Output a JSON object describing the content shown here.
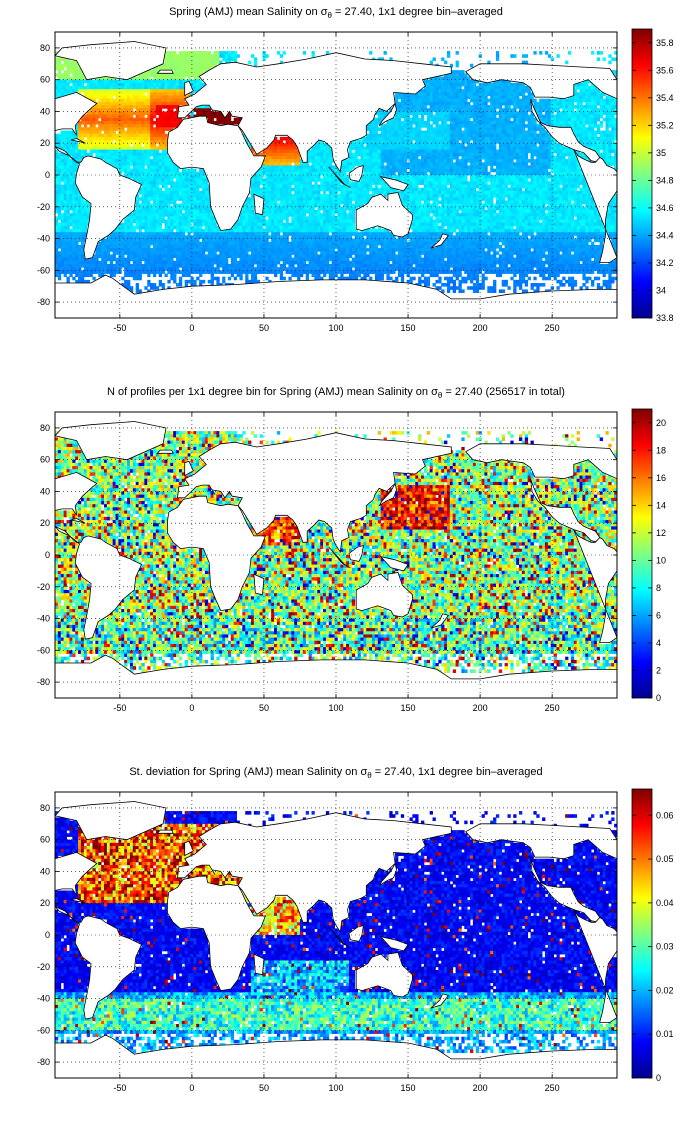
{
  "colors": {
    "land": "#ffffff",
    "coast": "#000000",
    "jet": [
      "#00008f",
      "#0000ff",
      "#0080ff",
      "#00ffff",
      "#80ff80",
      "#ffff00",
      "#ff8000",
      "#ff0000",
      "#800000"
    ]
  },
  "axes": {
    "x_ticks": [
      "-50",
      "0",
      "50",
      "100",
      "150",
      "200",
      "250"
    ],
    "y_ticks": [
      "80",
      "60",
      "40",
      "20",
      "0",
      "-20",
      "-40",
      "-60",
      "-80"
    ]
  },
  "panels": [
    {
      "title_parts": [
        "Spring (AMJ) mean Salinity on σ",
        "θ",
        " = 27.40, 1x1 degree bin–averaged"
      ],
      "colorbar_ticks": [
        "35.8",
        "35.6",
        "35.4",
        "35.2",
        "35",
        "34.8",
        "34.6",
        "34.4",
        "34.2",
        "34",
        "33.8"
      ],
      "clim": [
        33.8,
        35.9
      ],
      "variable": "salinity"
    },
    {
      "title_parts": [
        "N of profiles per 1x1 degree bin for Spring (AMJ) mean Salinity on σ",
        "θ",
        " = 27.40 (256517 in total)"
      ],
      "colorbar_ticks": [
        "20",
        "18",
        "16",
        "14",
        "12",
        "10",
        "8",
        "6",
        "4",
        "2",
        "0"
      ],
      "clim": [
        0,
        21
      ],
      "variable": "count"
    },
    {
      "title_parts": [
        "St. deviation for Spring (AMJ) mean Salinity on σ",
        "θ",
        " = 27.40, 1x1 degree bin–averaged"
      ],
      "colorbar_ticks": [
        "0.06",
        "0.05",
        "0.04",
        "0.03",
        "0.02",
        "0.01",
        "0"
      ],
      "clim": [
        0,
        0.066
      ],
      "variable": "stdev"
    }
  ]
}
